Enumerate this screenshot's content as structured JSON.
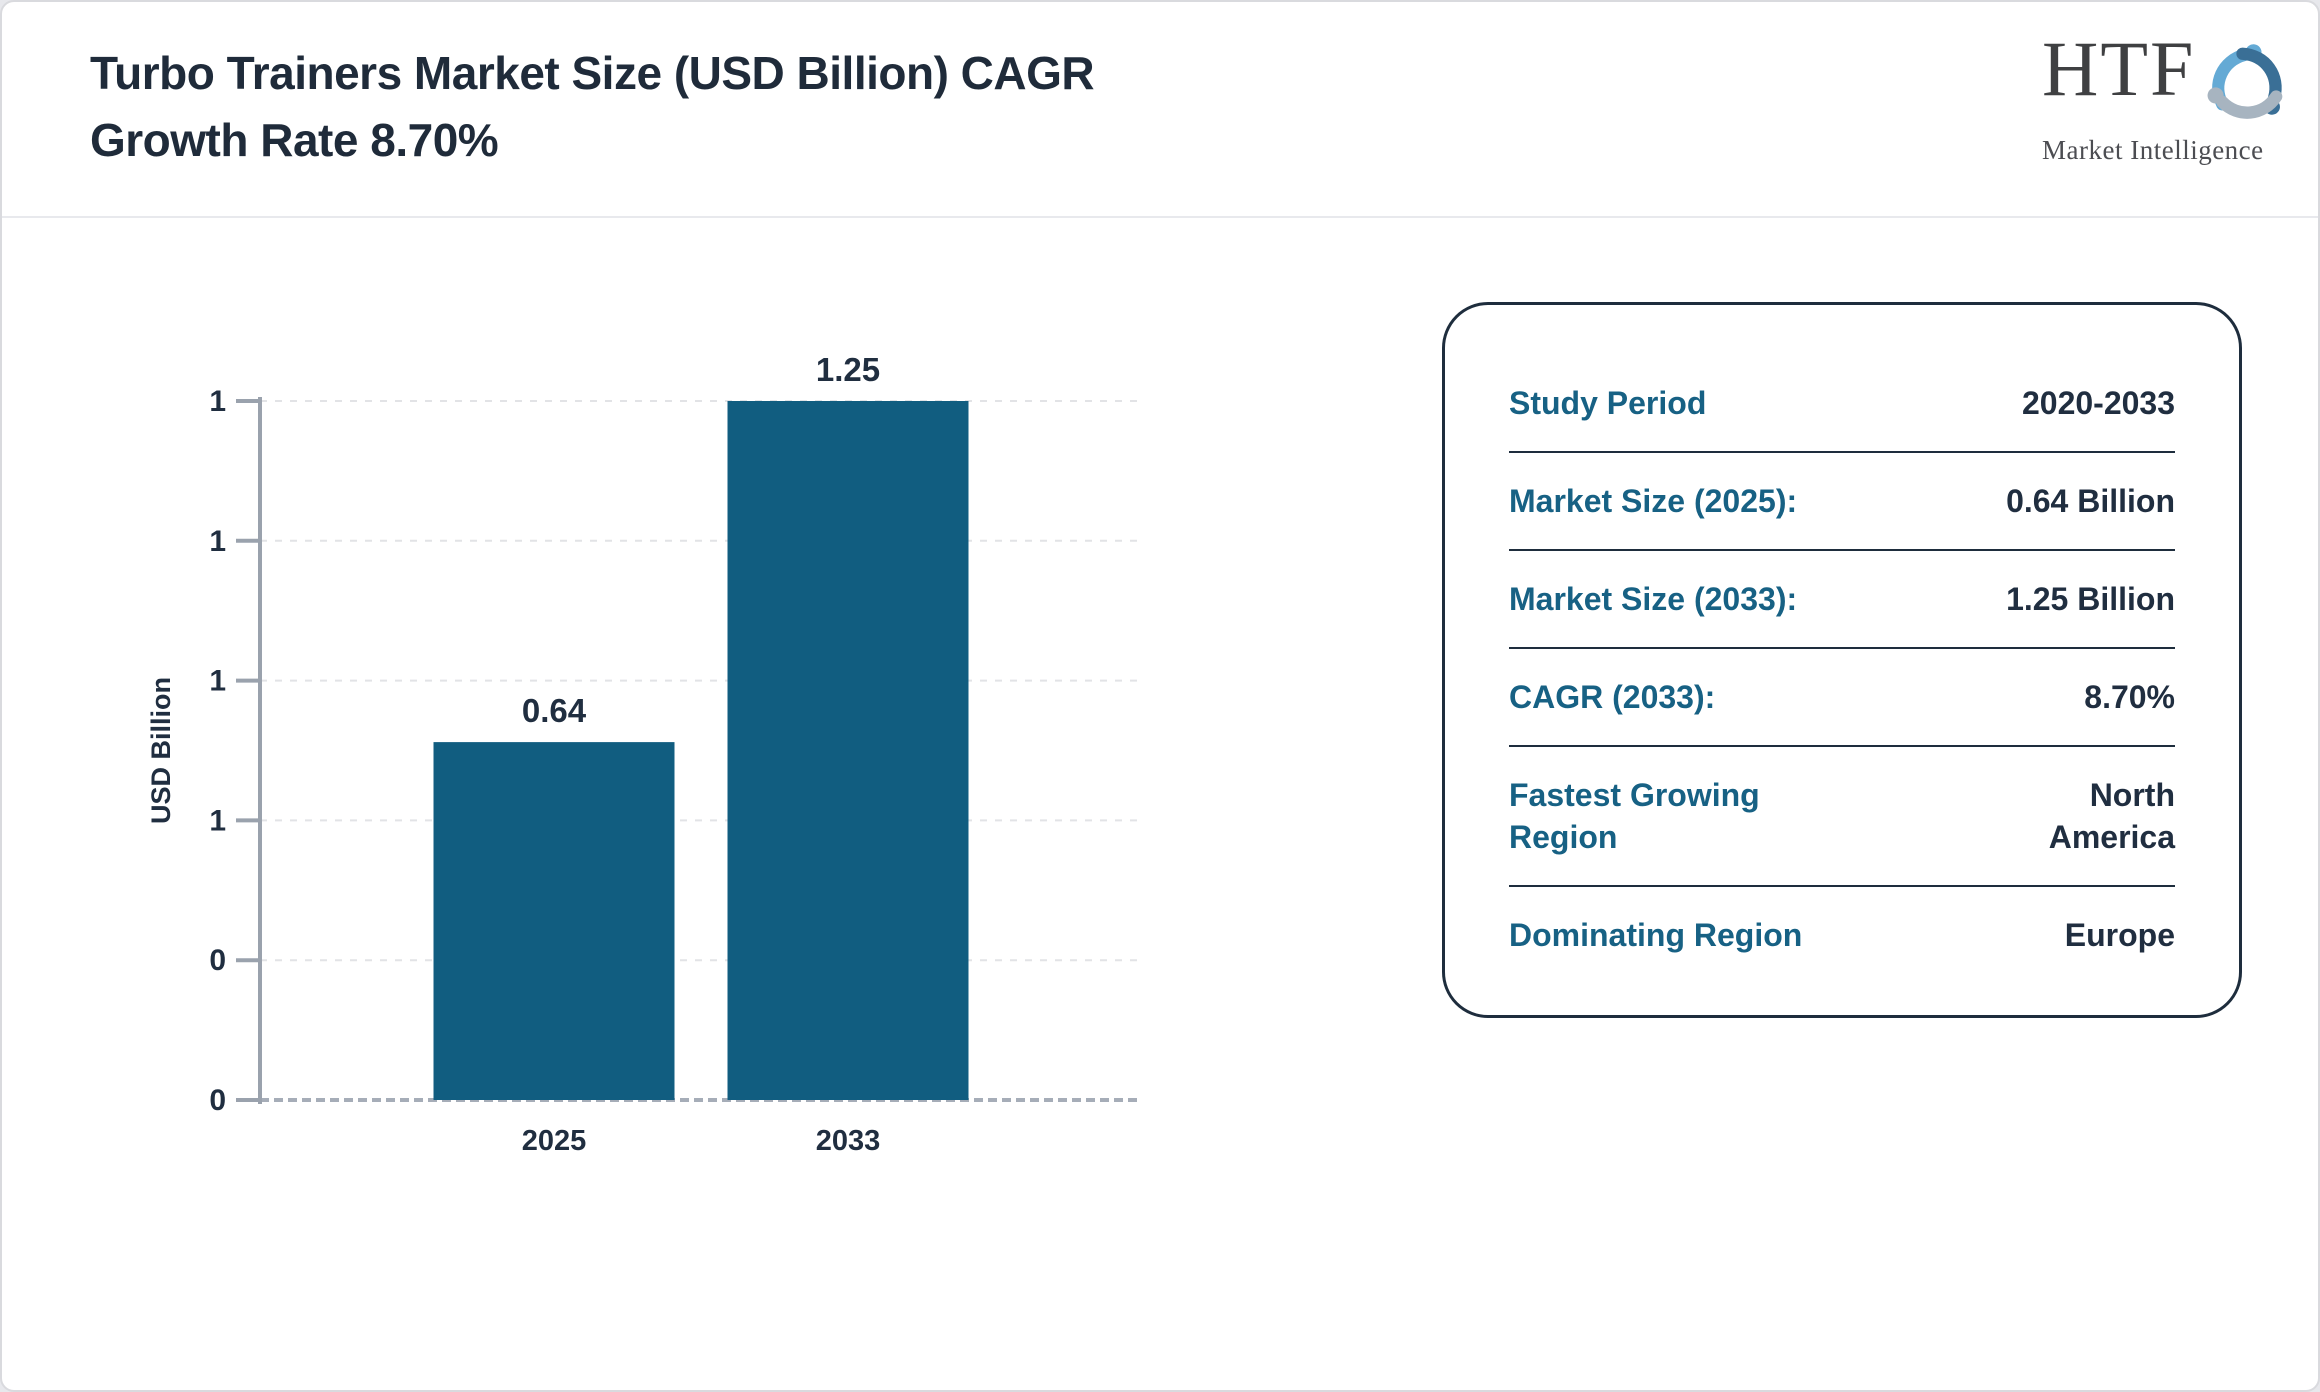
{
  "page": {
    "title_lines": [
      "Turbo Trainers Market Size (USD Billion) CAGR",
      "Growth Rate 8.70%"
    ]
  },
  "logo": {
    "name": "HTF",
    "tagline": "Market Intelligence",
    "swirl_colors": [
      "#64aad5",
      "#3a6f96",
      "#a7b4c0"
    ]
  },
  "chart_data": {
    "type": "bar",
    "title": "Turbo Trainers Market Size (USD Billion) CAGR Growth Rate 8.70%",
    "categories": [
      "2025",
      "2033"
    ],
    "values": [
      0.64,
      1.25
    ],
    "bar_labels": [
      "0.64",
      "1.25"
    ],
    "xlabel": "",
    "ylabel": "USD Billion",
    "ylim": [
      0,
      1.25
    ],
    "yticks": [
      0,
      0.25,
      0.5,
      0.75,
      1.0,
      1.25
    ],
    "ytick_labels": [
      "0",
      "0",
      "1",
      "1",
      "1",
      "1"
    ],
    "grid": "horizontal-dashed",
    "legend": false,
    "bar_color": "#115d80",
    "axis_color": "#9aa2ad",
    "grid_color": "#e2e3e6",
    "text_color": "#202e40"
  },
  "info_card": {
    "rows": [
      {
        "label": "Study Period",
        "value": "2020-2033"
      },
      {
        "label": "Market Size (2025):",
        "value": "0.64 Billion"
      },
      {
        "label": "Market Size (2033):",
        "value": "1.25 Billion"
      },
      {
        "label": "CAGR (2033):",
        "value": "8.70%"
      },
      {
        "label": "Fastest Growing\nRegion",
        "value": "North\nAmerica"
      },
      {
        "label": "Dominating Region",
        "value": "Europe"
      }
    ]
  }
}
